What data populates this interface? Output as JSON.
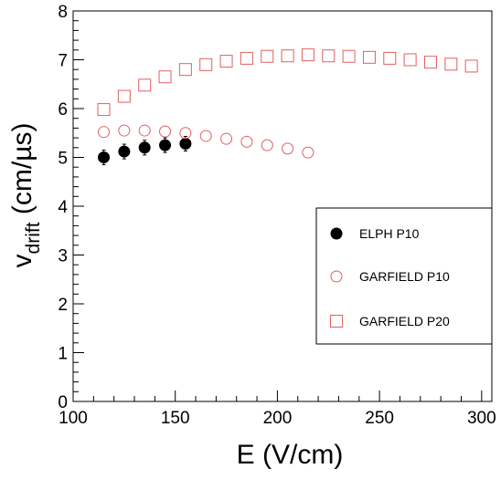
{
  "chart_data": {
    "type": "scatter",
    "title": "",
    "xlabel": "E (V/cm)",
    "ylabel_main": "v",
    "ylabel_sub": "drift",
    "ylabel_unit": " (cm/µs)",
    "xlim": [
      100,
      305
    ],
    "ylim": [
      0,
      8
    ],
    "xticks": [
      "100",
      "150",
      "200",
      "250",
      "300"
    ],
    "yticks": [
      "0",
      "1",
      "2",
      "3",
      "4",
      "5",
      "6",
      "7",
      "8"
    ],
    "grid": false,
    "legend_position": "right",
    "series": [
      {
        "name": "ELPH P10",
        "marker": "filled-circle",
        "color": "#000000",
        "x": [
          115,
          125,
          135,
          145,
          155
        ],
        "y": [
          5.0,
          5.12,
          5.2,
          5.25,
          5.28
        ],
        "yerr": [
          0.15,
          0.15,
          0.15,
          0.15,
          0.15
        ]
      },
      {
        "name": "GARFIELD P10",
        "marker": "open-circle",
        "color": "#e06060",
        "x": [
          115,
          125,
          135,
          145,
          155,
          165,
          175,
          185,
          195,
          205,
          215
        ],
        "y": [
          5.52,
          5.55,
          5.55,
          5.53,
          5.5,
          5.44,
          5.38,
          5.32,
          5.25,
          5.18,
          5.1
        ]
      },
      {
        "name": "GARFIELD P20",
        "marker": "open-square",
        "color": "#e06060",
        "x": [
          115,
          125,
          135,
          145,
          155,
          165,
          175,
          185,
          195,
          205,
          215,
          225,
          235,
          245,
          255,
          265,
          275,
          285,
          295
        ],
        "y": [
          5.98,
          6.25,
          6.48,
          6.65,
          6.8,
          6.9,
          6.97,
          7.03,
          7.07,
          7.08,
          7.1,
          7.08,
          7.07,
          7.05,
          7.03,
          7.0,
          6.95,
          6.91,
          6.87
        ]
      }
    ]
  }
}
